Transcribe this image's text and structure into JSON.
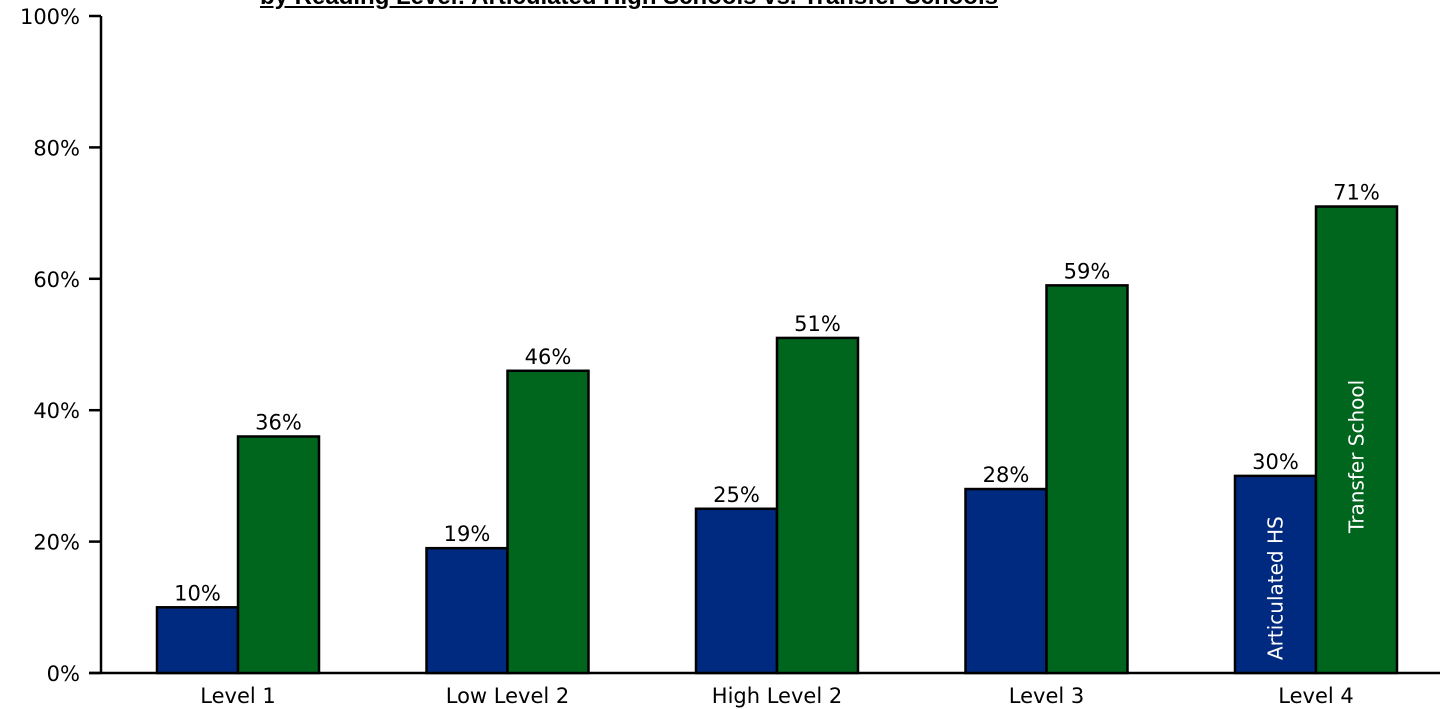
{
  "chart_data": {
    "type": "bar",
    "title": "by Reading Level: Articulated High Schools vs. Transfer Schools",
    "categories": [
      "Level 1",
      "Low Level 2",
      "High Level 2",
      "Level 3",
      "Level 4"
    ],
    "series": [
      {
        "name": "Articulated HS",
        "values": [
          10,
          19,
          25,
          28,
          30
        ],
        "labels": [
          "10%",
          "19%",
          "25%",
          "28%",
          "30%"
        ],
        "color": "#002a80"
      },
      {
        "name": "Transfer School",
        "values": [
          36,
          46,
          51,
          59,
          71
        ],
        "labels": [
          "36%",
          "46%",
          "51%",
          "59%",
          "71%"
        ],
        "color": "#00661d"
      }
    ],
    "ylim": [
      0,
      100
    ],
    "yticks": [
      "0%",
      "20%",
      "40%",
      "60%",
      "80%",
      "100%"
    ],
    "grid": false,
    "legend": "inside bars of last category"
  }
}
